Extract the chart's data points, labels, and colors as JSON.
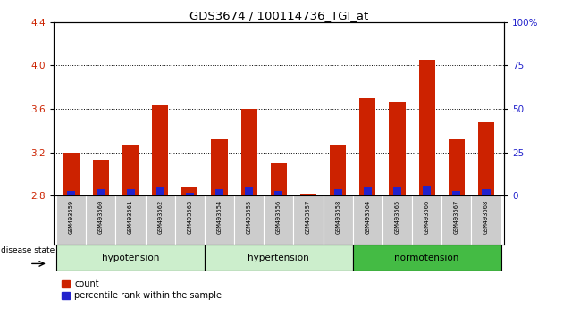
{
  "title": "GDS3674 / 100114736_TGI_at",
  "samples": [
    "GSM493559",
    "GSM493560",
    "GSM493561",
    "GSM493562",
    "GSM493563",
    "GSM493554",
    "GSM493555",
    "GSM493556",
    "GSM493557",
    "GSM493558",
    "GSM493564",
    "GSM493565",
    "GSM493566",
    "GSM493567",
    "GSM493568"
  ],
  "count_values": [
    3.2,
    3.13,
    3.27,
    3.63,
    2.88,
    3.32,
    3.6,
    3.1,
    2.82,
    3.27,
    3.7,
    3.67,
    4.05,
    3.32,
    3.48
  ],
  "percentile_values": [
    3,
    4,
    4,
    5,
    2,
    4,
    5,
    3,
    1,
    4,
    5,
    5,
    6,
    3,
    4
  ],
  "groups": [
    {
      "label": "hypotension",
      "indices": [
        0,
        1,
        2,
        3,
        4
      ],
      "color": "#cceecc"
    },
    {
      "label": "hypertension",
      "indices": [
        5,
        6,
        7,
        8,
        9
      ],
      "color": "#cceecc"
    },
    {
      "label": "normotension",
      "indices": [
        10,
        11,
        12,
        13,
        14
      ],
      "color": "#44bb44"
    }
  ],
  "ymin": 2.8,
  "ymax": 4.4,
  "yticks_left": [
    2.8,
    3.2,
    3.6,
    4.0,
    4.4
  ],
  "yticks_right": [
    0,
    25,
    50,
    75,
    100
  ],
  "bar_color_red": "#cc2200",
  "bar_color_blue": "#2222cc",
  "background_color": "#ffffff",
  "sample_box_color": "#cccccc",
  "label_disease_state": "disease state"
}
